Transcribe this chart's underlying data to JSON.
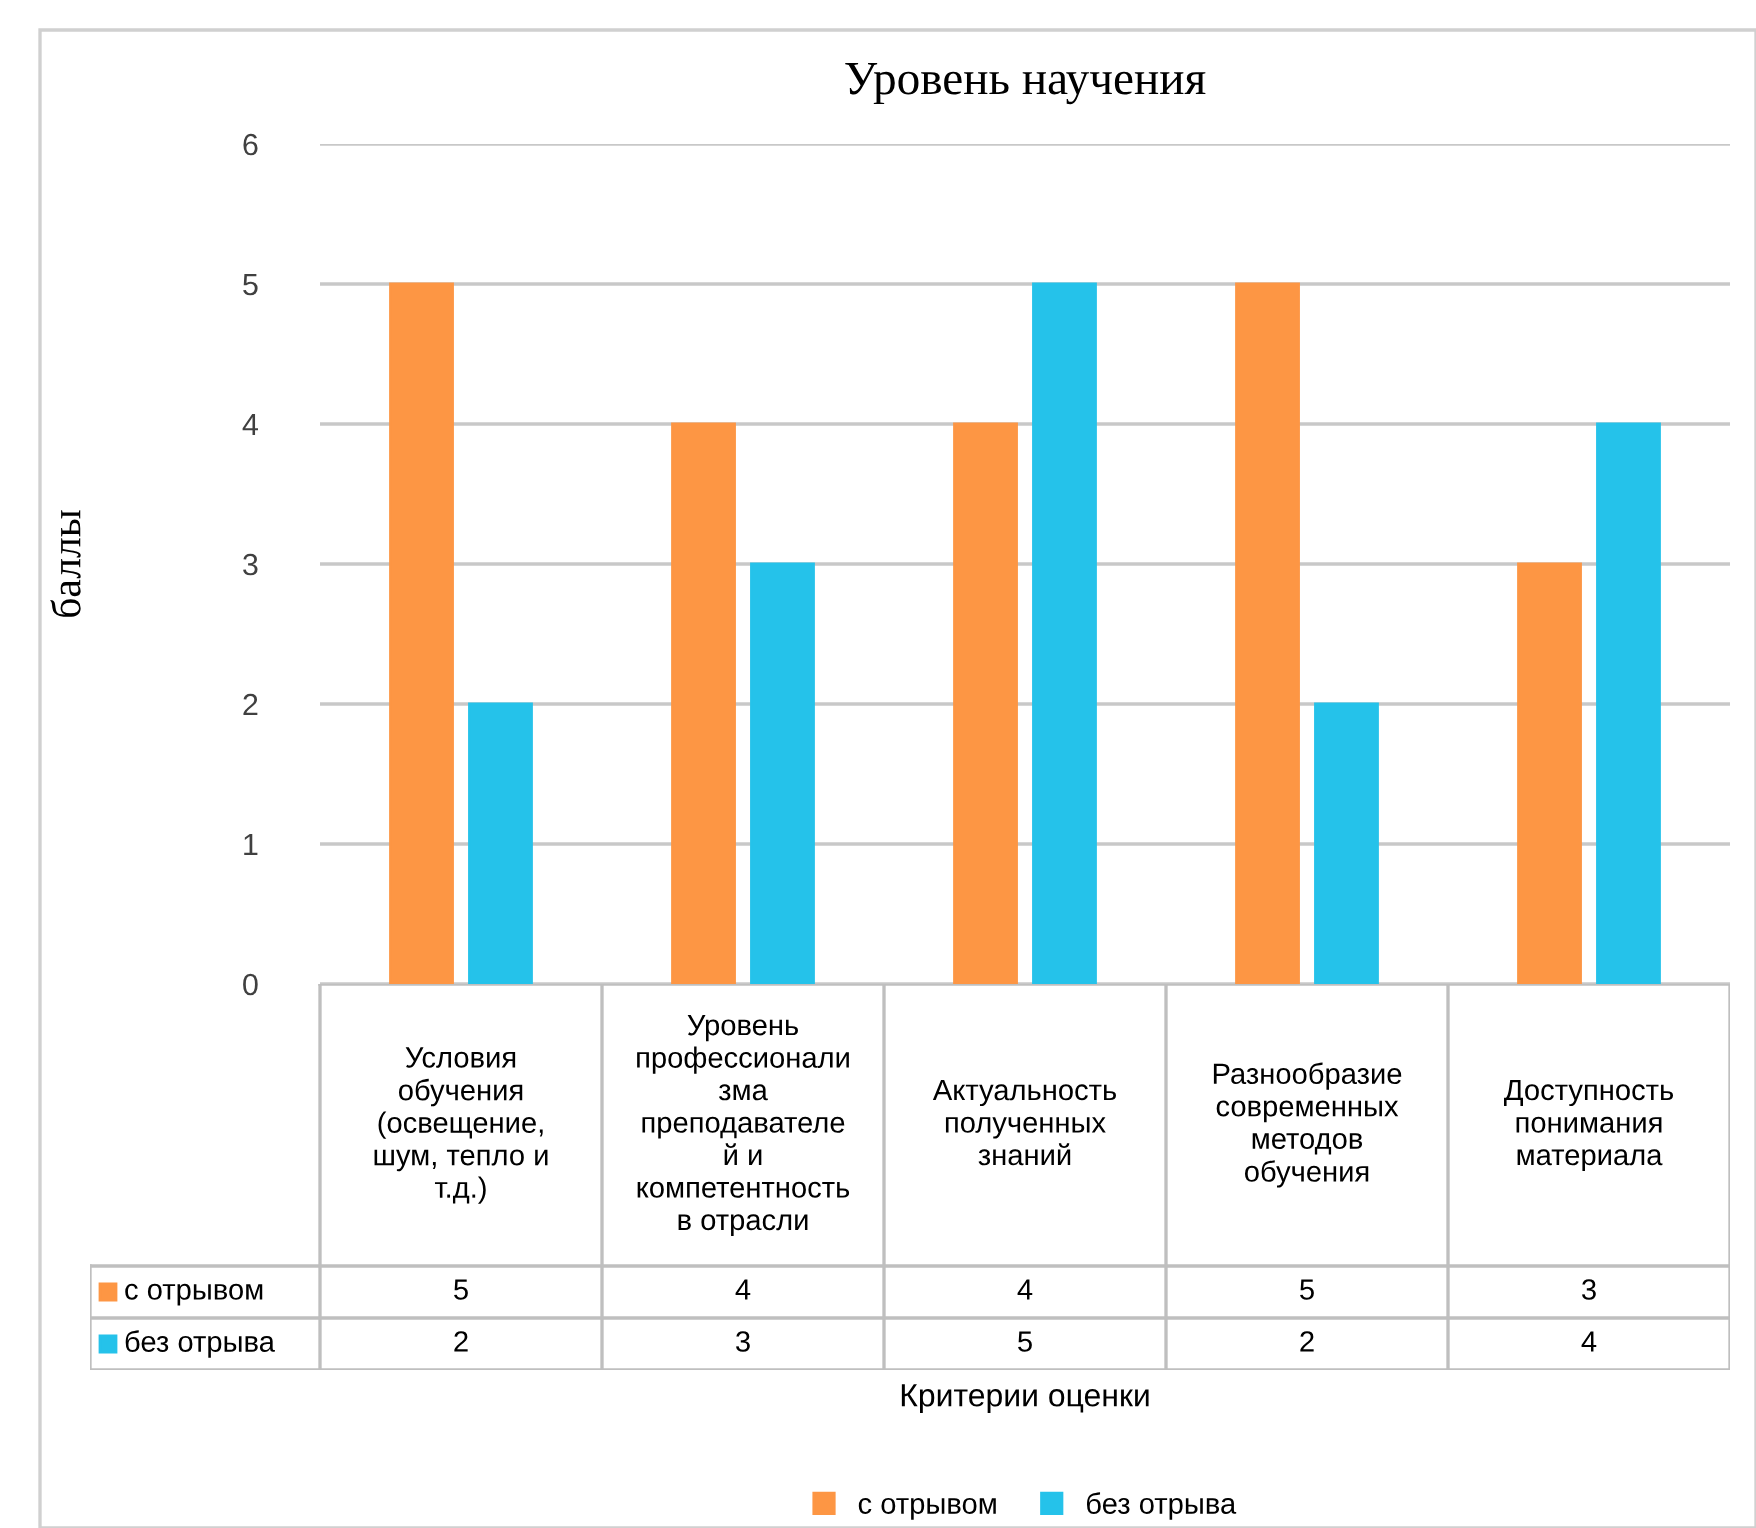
{
  "chart_data": {
    "type": "bar",
    "title": "Уровень научения",
    "xlabel": "Критерии оценки",
    "ylabel": "баллы",
    "categories": [
      "Условия\nобучения\n(освещение,\nшум, тепло и\nт.д.)",
      "Уровень\nпрофессионали\nзма\nпреподавателе\nй и\nкомпетентность\nв отрасли",
      "Актуальность\nполученных\nзнаний",
      "Разнообразие\nсовременных\nметодов\nобучения",
      "Доступность\nпонимания\nматериала"
    ],
    "series": [
      {
        "name": "с отрывом",
        "color": "#fd9644",
        "values": [
          5,
          4,
          4,
          5,
          3
        ]
      },
      {
        "name": "без отрыва",
        "color": "#25c2ea",
        "values": [
          2,
          3,
          5,
          2,
          4
        ]
      }
    ],
    "ylim": [
      0,
      6
    ],
    "yticks": [
      0,
      1,
      2,
      3,
      4,
      5,
      6
    ],
    "grid": "y",
    "data_labels": true,
    "legend": "bottom"
  }
}
